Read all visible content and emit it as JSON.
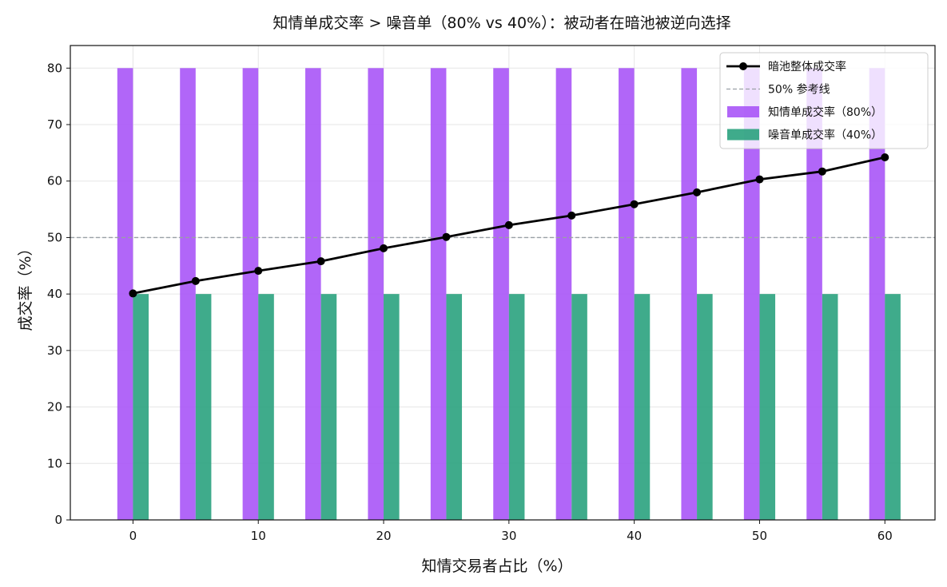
{
  "chart_data": {
    "type": "bar",
    "title": "知情单成交率 > 噪音单（80% vs 40%）：被动者在暗池被逆向选择",
    "xlabel": "知情交易者占比（%）",
    "ylabel": "成交率（%）",
    "x": [
      0,
      5,
      10,
      15,
      20,
      25,
      30,
      35,
      40,
      45,
      50,
      55,
      60
    ],
    "xlim": [
      -5,
      64
    ],
    "ylim": [
      0,
      84
    ],
    "xticks": [
      "0",
      "10",
      "20",
      "30",
      "40",
      "50",
      "60"
    ],
    "xtick_values": [
      0,
      10,
      20,
      30,
      40,
      50,
      60
    ],
    "yticks": [
      "0",
      "10",
      "20",
      "30",
      "40",
      "50",
      "60",
      "70",
      "80"
    ],
    "ytick_values": [
      0,
      10,
      20,
      30,
      40,
      50,
      60,
      70,
      80
    ],
    "grid": true,
    "legend_position": "top-right",
    "series": [
      {
        "name": "暗池整体成交率",
        "kind": "line",
        "color": "#000000",
        "values": [
          40.1,
          42.3,
          44.1,
          45.8,
          48.1,
          50.1,
          52.2,
          53.9,
          55.9,
          58.0,
          60.3,
          61.7,
          64.2
        ]
      },
      {
        "name": "50% 参考线",
        "kind": "hline",
        "color": "#9aa0a6",
        "value": 50
      },
      {
        "name": "知情单成交率（80%）",
        "kind": "bar",
        "color": "#a855f7",
        "values": [
          80,
          80,
          80,
          80,
          80,
          80,
          80,
          80,
          80,
          80,
          80,
          80,
          80
        ]
      },
      {
        "name": "噪音单成交率（40%）",
        "kind": "bar",
        "color": "#2aa27e",
        "values": [
          40,
          40,
          40,
          40,
          40,
          40,
          40,
          40,
          40,
          40,
          40,
          40,
          40
        ]
      }
    ]
  }
}
